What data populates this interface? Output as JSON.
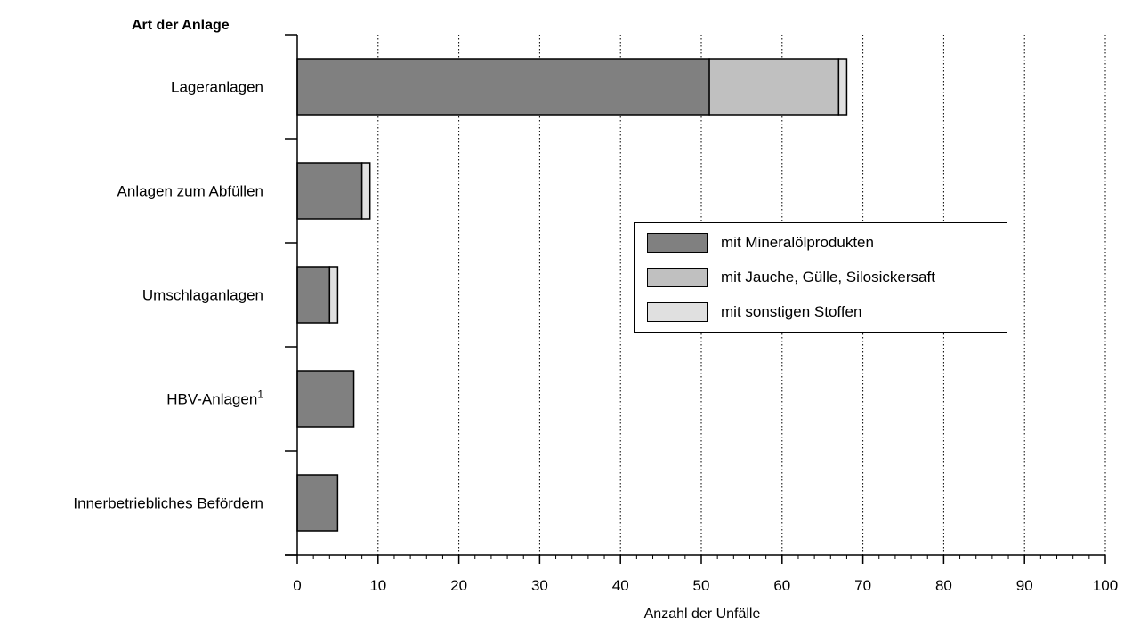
{
  "chart_data": {
    "type": "bar",
    "orientation": "horizontal",
    "stacked": true,
    "title": "",
    "ylabel": "Art der Anlage",
    "xlabel": "Anzahl der Unfälle",
    "xlim": [
      0,
      100
    ],
    "x_ticks": [
      "0",
      "10",
      "20",
      "30",
      "40",
      "50",
      "60",
      "70",
      "80",
      "90",
      "100"
    ],
    "categories": [
      "Lageranlagen",
      "Anlagen zum Abfüllen",
      "Umschlaganlagen",
      "HBV-Anlagen",
      "Innerbetriebliches Befördern"
    ],
    "category_superscripts": [
      "",
      "",
      "",
      "1",
      ""
    ],
    "series": [
      {
        "name": "mit Mineralölprodukten",
        "values": [
          51,
          8,
          4,
          7,
          5
        ],
        "color": "#808080"
      },
      {
        "name": "mit Jauche, Gülle, Silosickersaft",
        "values": [
          16,
          0,
          0,
          0,
          0
        ],
        "color": "#c0c0c0"
      },
      {
        "name": "mit sonstigen Stoffen",
        "values": [
          1,
          1,
          1,
          0,
          0
        ],
        "color": "#e0e0e0"
      }
    ],
    "grid": {
      "vertical": true,
      "style": "dotted"
    },
    "legend_position": "right-center"
  }
}
